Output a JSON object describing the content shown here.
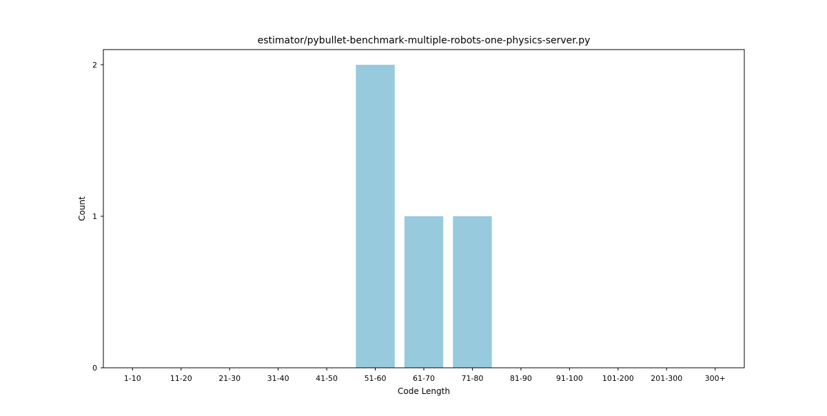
{
  "chart_data": {
    "type": "bar",
    "title": "estimator/pybullet-benchmark-multiple-robots-one-physics-server.py",
    "xlabel": "Code Length",
    "ylabel": "Count",
    "categories": [
      "1-10",
      "11-20",
      "21-30",
      "31-40",
      "41-50",
      "51-60",
      "61-70",
      "71-80",
      "81-90",
      "91-100",
      "101-200",
      "201-300",
      "300+"
    ],
    "values": [
      0,
      0,
      0,
      0,
      0,
      2,
      1,
      1,
      0,
      0,
      0,
      0,
      0
    ],
    "ylim": [
      0,
      2.1
    ],
    "yticks": [
      "0",
      "1",
      "2"
    ],
    "bar_color": "#97CADD",
    "grid": false,
    "legend": "none"
  }
}
